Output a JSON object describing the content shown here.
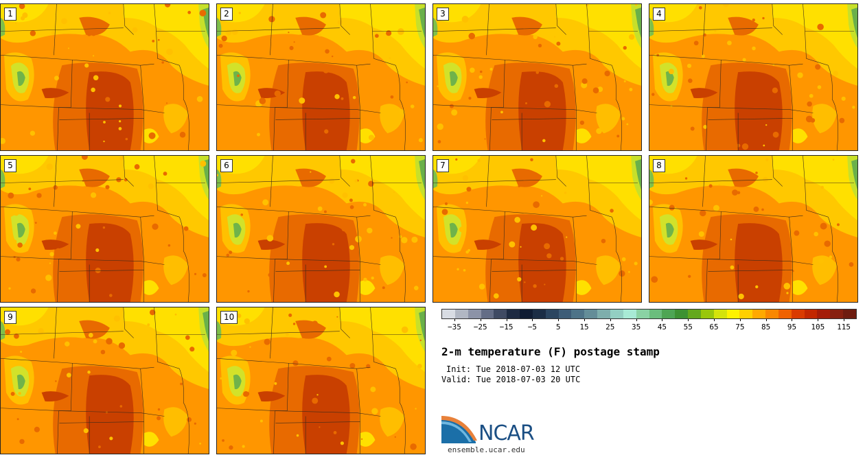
{
  "panels": [
    "1",
    "2",
    "3",
    "4",
    "5",
    "6",
    "7",
    "8",
    "9",
    "10"
  ],
  "colorbar": {
    "colors": [
      "#d8dce3",
      "#b1b7c3",
      "#8c93a7",
      "#646d86",
      "#3f4a63",
      "#1d2a42",
      "#0f1c33",
      "#1b2d45",
      "#2b4560",
      "#3d5c77",
      "#4e7388",
      "#648d98",
      "#7eaeac",
      "#93cfc2",
      "#a8ead5",
      "#8ad2a4",
      "#6bbd7d",
      "#4ea554",
      "#3d9132",
      "#64a81d",
      "#99c70c",
      "#d4e30b",
      "#fff200",
      "#ffd000",
      "#ffa900",
      "#f98700",
      "#ef6200",
      "#d93b00",
      "#c22700",
      "#a41c08",
      "#872010",
      "#6e1c10"
    ],
    "tick_labels": [
      "-35",
      "-25",
      "-15",
      "-5",
      "5",
      "15",
      "25",
      "35",
      "45",
      "55",
      "65",
      "75",
      "85",
      "95",
      "105",
      "115"
    ]
  },
  "title": "2-m temperature (F) postage stamp",
  "init": "Init: Tue 2018-07-03 12 UTC",
  "valid": "Valid: Tue 2018-07-03 20 UTC",
  "logo_text": "NCAR",
  "site": "ensemble.ucar.edu"
}
